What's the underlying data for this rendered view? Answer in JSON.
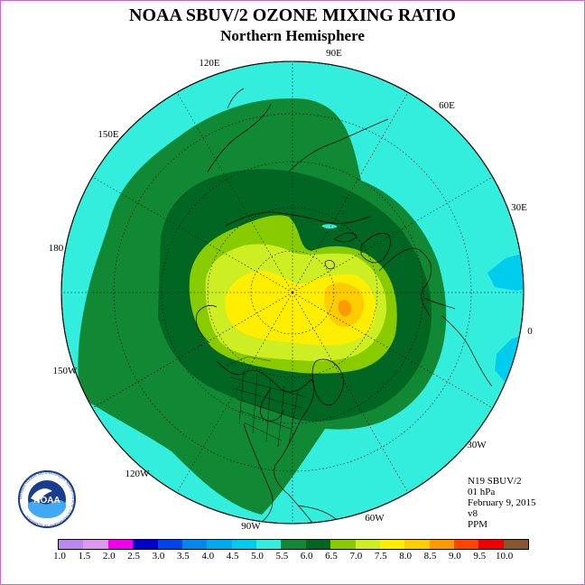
{
  "title": "NOAA SBUV/2 OZONE MIXING RATIO",
  "subtitle": "Northern Hemisphere",
  "longitude_labels": {
    "lon_90e": "90E",
    "lon_60e": "60E",
    "lon_30e": "30E",
    "lon_0": "0",
    "lon_30w": "30W",
    "lon_60w": "60W",
    "lon_90w": "90W",
    "lon_120w": "120W",
    "lon_150w": "150W",
    "lon_180": "180",
    "lon_150e": "150E",
    "lon_120e": "120E"
  },
  "info": {
    "instrument": "N19 SBUV/2",
    "level": "01 hPa",
    "date": "February 9, 2015",
    "version": "v8",
    "units": "PPM"
  },
  "logo": {
    "text": "NOAA",
    "ring_text": "NATIONAL OCEANIC AND ATMOSPHERIC ADMINISTRATION · U.S. DEPARTMENT OF COMMERCE"
  },
  "colorbar": {
    "labels": [
      "1.0",
      "1.5",
      "2.0",
      "2.5",
      "3.0",
      "3.5",
      "4.0",
      "4.5",
      "5.0",
      "5.5",
      "6.0",
      "6.5",
      "7.0",
      "7.5",
      "8.0",
      "8.5",
      "9.0",
      "9.5",
      "10.0"
    ],
    "colors": [
      "#bb88ee",
      "#dd99ee",
      "#ee00ee",
      "#0000cc",
      "#0044ee",
      "#0088ee",
      "#00aaee",
      "#00ccee",
      "#33eedd",
      "#118833",
      "#006622",
      "#88cc00",
      "#ccee22",
      "#ffee00",
      "#ffcc00",
      "#ff9900",
      "#ff4400",
      "#ee0000",
      "#885533"
    ]
  },
  "colors": {
    "ocean_band": "#33eedd",
    "green_55": "#118833",
    "green_60": "#006622",
    "lime_65": "#88cc00",
    "yellowgreen_70": "#ccee22",
    "yellow_75": "#ffee00",
    "orange_80": "#ffcc00",
    "blue_45": "#00ccee"
  }
}
